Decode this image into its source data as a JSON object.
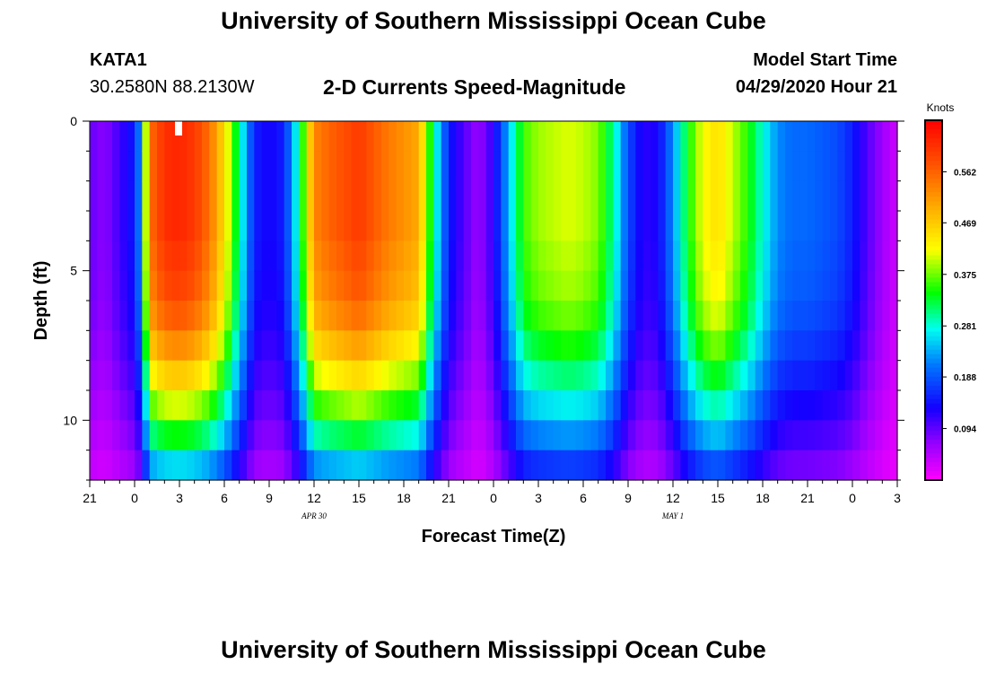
{
  "header": {
    "title": "University of Southern Mississippi Ocean Cube",
    "station": "KATA1",
    "coords": "30.2580N 88.2130W",
    "subtitle": "2-D Currents Speed-Magnitude",
    "model_label": "Model Start Time",
    "model_time": "04/29/2020 Hour 21"
  },
  "footer": {
    "title": "University of Southern Mississippi Ocean Cube"
  },
  "chart_data": {
    "type": "heatmap",
    "title": "2-D Currents Speed-Magnitude",
    "xlabel": "Forecast Time(Z)",
    "ylabel": "Depth (ft)",
    "x_hours_range": [
      0,
      54
    ],
    "x_ticks": [
      {
        "h": 0,
        "label": "21"
      },
      {
        "h": 3,
        "label": "0"
      },
      {
        "h": 6,
        "label": "3"
      },
      {
        "h": 9,
        "label": "6"
      },
      {
        "h": 12,
        "label": "9"
      },
      {
        "h": 15,
        "label": "12"
      },
      {
        "h": 18,
        "label": "15"
      },
      {
        "h": 21,
        "label": "18"
      },
      {
        "h": 24,
        "label": "21"
      },
      {
        "h": 27,
        "label": "0"
      },
      {
        "h": 30,
        "label": "3"
      },
      {
        "h": 33,
        "label": "6"
      },
      {
        "h": 36,
        "label": "9"
      },
      {
        "h": 39,
        "label": "12"
      },
      {
        "h": 42,
        "label": "15"
      },
      {
        "h": 45,
        "label": "18"
      },
      {
        "h": 48,
        "label": "21"
      },
      {
        "h": 51,
        "label": "0"
      },
      {
        "h": 54,
        "label": "3"
      }
    ],
    "date_labels": [
      {
        "h": 15,
        "label": "APR 30"
      },
      {
        "h": 39,
        "label": "MAY 1"
      }
    ],
    "ylim": [
      0,
      12
    ],
    "y_ticks": [
      {
        "v": 0,
        "label": "0"
      },
      {
        "v": 5,
        "label": "5"
      },
      {
        "v": 10,
        "label": "10"
      }
    ],
    "depth_rows": 12,
    "depth_profile": [
      1.0,
      1.0,
      1.0,
      1.0,
      0.98,
      0.96,
      0.92,
      0.85,
      0.76,
      0.66,
      0.55,
      0.42
    ],
    "surface_speed_profile_knots": [
      [
        0,
        0.09
      ],
      [
        0.5,
        0.08
      ],
      [
        1,
        0.07
      ],
      [
        2,
        0.11
      ],
      [
        3,
        0.15
      ],
      [
        3.5,
        0.25
      ],
      [
        4,
        0.55
      ],
      [
        5,
        0.61
      ],
      [
        6,
        0.62
      ],
      [
        7,
        0.6
      ],
      [
        8,
        0.55
      ],
      [
        9,
        0.45
      ],
      [
        10,
        0.3
      ],
      [
        11,
        0.15
      ],
      [
        12,
        0.13
      ],
      [
        13,
        0.15
      ],
      [
        14,
        0.3
      ],
      [
        15,
        0.53
      ],
      [
        16,
        0.56
      ],
      [
        17,
        0.58
      ],
      [
        18,
        0.6
      ],
      [
        19,
        0.57
      ],
      [
        20,
        0.54
      ],
      [
        21,
        0.52
      ],
      [
        22,
        0.5
      ],
      [
        23,
        0.3
      ],
      [
        24,
        0.15
      ],
      [
        25,
        0.1
      ],
      [
        26,
        0.06
      ],
      [
        27,
        0.12
      ],
      [
        28,
        0.24
      ],
      [
        29,
        0.36
      ],
      [
        30,
        0.39
      ],
      [
        31,
        0.4
      ],
      [
        32,
        0.41
      ],
      [
        33,
        0.4
      ],
      [
        34,
        0.38
      ],
      [
        35,
        0.3
      ],
      [
        36,
        0.18
      ],
      [
        37,
        0.12
      ],
      [
        38,
        0.13
      ],
      [
        39,
        0.22
      ],
      [
        40,
        0.34
      ],
      [
        41,
        0.42
      ],
      [
        42,
        0.45
      ],
      [
        43,
        0.4
      ],
      [
        44,
        0.35
      ],
      [
        45,
        0.28
      ],
      [
        46,
        0.22
      ],
      [
        47,
        0.2
      ],
      [
        48,
        0.2
      ],
      [
        49,
        0.19
      ],
      [
        50,
        0.18
      ],
      [
        51,
        0.15
      ],
      [
        52,
        0.1
      ],
      [
        53,
        0.06
      ],
      [
        54,
        0.03
      ]
    ],
    "colorbar": {
      "title": "Knots",
      "range": [
        0,
        0.656
      ],
      "ticks": [
        "0.094",
        "0.188",
        "0.281",
        "0.375",
        "0.469",
        "0.562"
      ]
    }
  }
}
